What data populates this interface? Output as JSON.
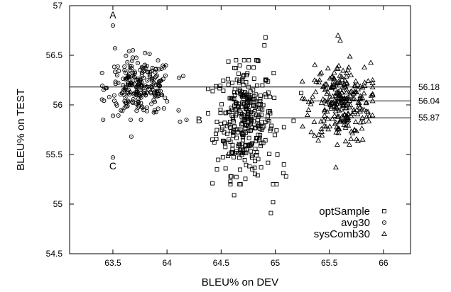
{
  "chart_data": {
    "type": "scatter",
    "xlabel": "BLEU% on DEV",
    "ylabel": "BLEU% on TEST",
    "xlim": [
      63.1,
      66.25
    ],
    "ylim": [
      54.5,
      57
    ],
    "xticks": [
      "63.5",
      "64",
      "64.5",
      "65",
      "65.5",
      "66"
    ],
    "yticks": [
      "54.5",
      "55",
      "55.5",
      "56",
      "56.5",
      "57"
    ],
    "legend_position": "bottom-right",
    "series": [
      {
        "name": "optSample",
        "marker": "square",
        "cluster": {
          "x_center": 64.72,
          "x_spread": 0.13,
          "y_center": 55.85,
          "y_spread": 0.27,
          "x_min": 64.38,
          "x_max": 65.22,
          "y_min": 55.2,
          "y_max": 56.45,
          "count": 330
        },
        "points": [
          [
            64.91,
            56.68
          ],
          [
            64.9,
            56.6
          ],
          [
            65.08,
            55.4
          ],
          [
            64.98,
            55.2
          ],
          [
            64.98,
            55.02
          ],
          [
            64.96,
            54.91
          ],
          [
            64.62,
            55.09
          ],
          [
            64.42,
            55.21
          ],
          [
            65.24,
            56.12
          ],
          [
            64.42,
            55.65
          ],
          [
            65.17,
            55.84
          ],
          [
            65.1,
            55.28
          ],
          [
            65.02,
            55.5
          ]
        ]
      },
      {
        "name": "avg30",
        "marker": "circle",
        "cluster": {
          "x_center": 63.75,
          "x_spread": 0.15,
          "y_center": 56.18,
          "y_spread": 0.14,
          "x_min": 63.4,
          "x_max": 64.15,
          "y_min": 55.85,
          "y_max": 56.55,
          "count": 230
        },
        "points": [
          [
            63.5,
            56.8
          ],
          [
            63.5,
            55.47
          ],
          [
            63.67,
            55.68
          ],
          [
            64.18,
            55.85
          ],
          [
            64.12,
            55.83
          ],
          [
            63.52,
            56.57
          ],
          [
            63.65,
            56.54
          ]
        ]
      },
      {
        "name": "sysComb30",
        "marker": "triangle",
        "cluster": {
          "x_center": 65.6,
          "x_spread": 0.14,
          "y_center": 56.02,
          "y_spread": 0.2,
          "x_min": 65.25,
          "x_max": 65.9,
          "y_min": 55.6,
          "y_max": 56.55,
          "count": 260
        },
        "points": [
          [
            65.58,
            56.7
          ],
          [
            65.6,
            56.65
          ],
          [
            65.56,
            55.37
          ],
          [
            65.27,
            56.06
          ],
          [
            65.9,
            56.25
          ]
        ]
      }
    ],
    "reference_lines": [
      {
        "y": 56.18,
        "label": "56.18",
        "x_from": 63.1
      },
      {
        "y": 56.04,
        "label": "56.04",
        "x_from": 65.28
      },
      {
        "y": 55.87,
        "label": "55.87",
        "x_from": 64.72
      }
    ],
    "annotations": [
      {
        "text": "A",
        "x": 63.5,
        "y": 56.8
      },
      {
        "text": "B",
        "x": 64.18,
        "y": 55.85
      },
      {
        "text": "C",
        "x": 63.5,
        "y": 55.47
      }
    ]
  }
}
